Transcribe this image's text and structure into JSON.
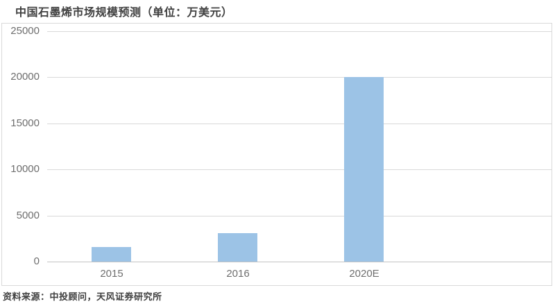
{
  "title": "中国石墨烯市场规模预测（单位：万美元）",
  "source_note": "资料来源：中投顾问，天风证券研究所",
  "colors": {
    "bar_fill": "#9cc3e6",
    "title_text": "#3f3f3f",
    "axis_text": "#6e6e6e",
    "gridline": "#d9d9d9",
    "plot_border": "#d9d9d9",
    "baseline": "#c3c3c3",
    "background": "#ffffff"
  },
  "chart_data": {
    "type": "bar",
    "title": "中国石墨烯市场规模预测（单位：万美元）",
    "unit": "万美元",
    "categories": [
      "2015",
      "2016",
      "2020E"
    ],
    "values": [
      1600,
      3100,
      20000
    ],
    "xlabel": "",
    "ylabel": "",
    "ylim": [
      0,
      25000
    ],
    "yticks": [
      "25000",
      "20000",
      "15000",
      "10000",
      "5000",
      "0"
    ],
    "ytick_values": [
      25000,
      20000,
      15000,
      10000,
      5000,
      0
    ],
    "grid": "horizontal",
    "legend": "none",
    "source": "资料来源：中投顾问，天风证券研究所"
  }
}
